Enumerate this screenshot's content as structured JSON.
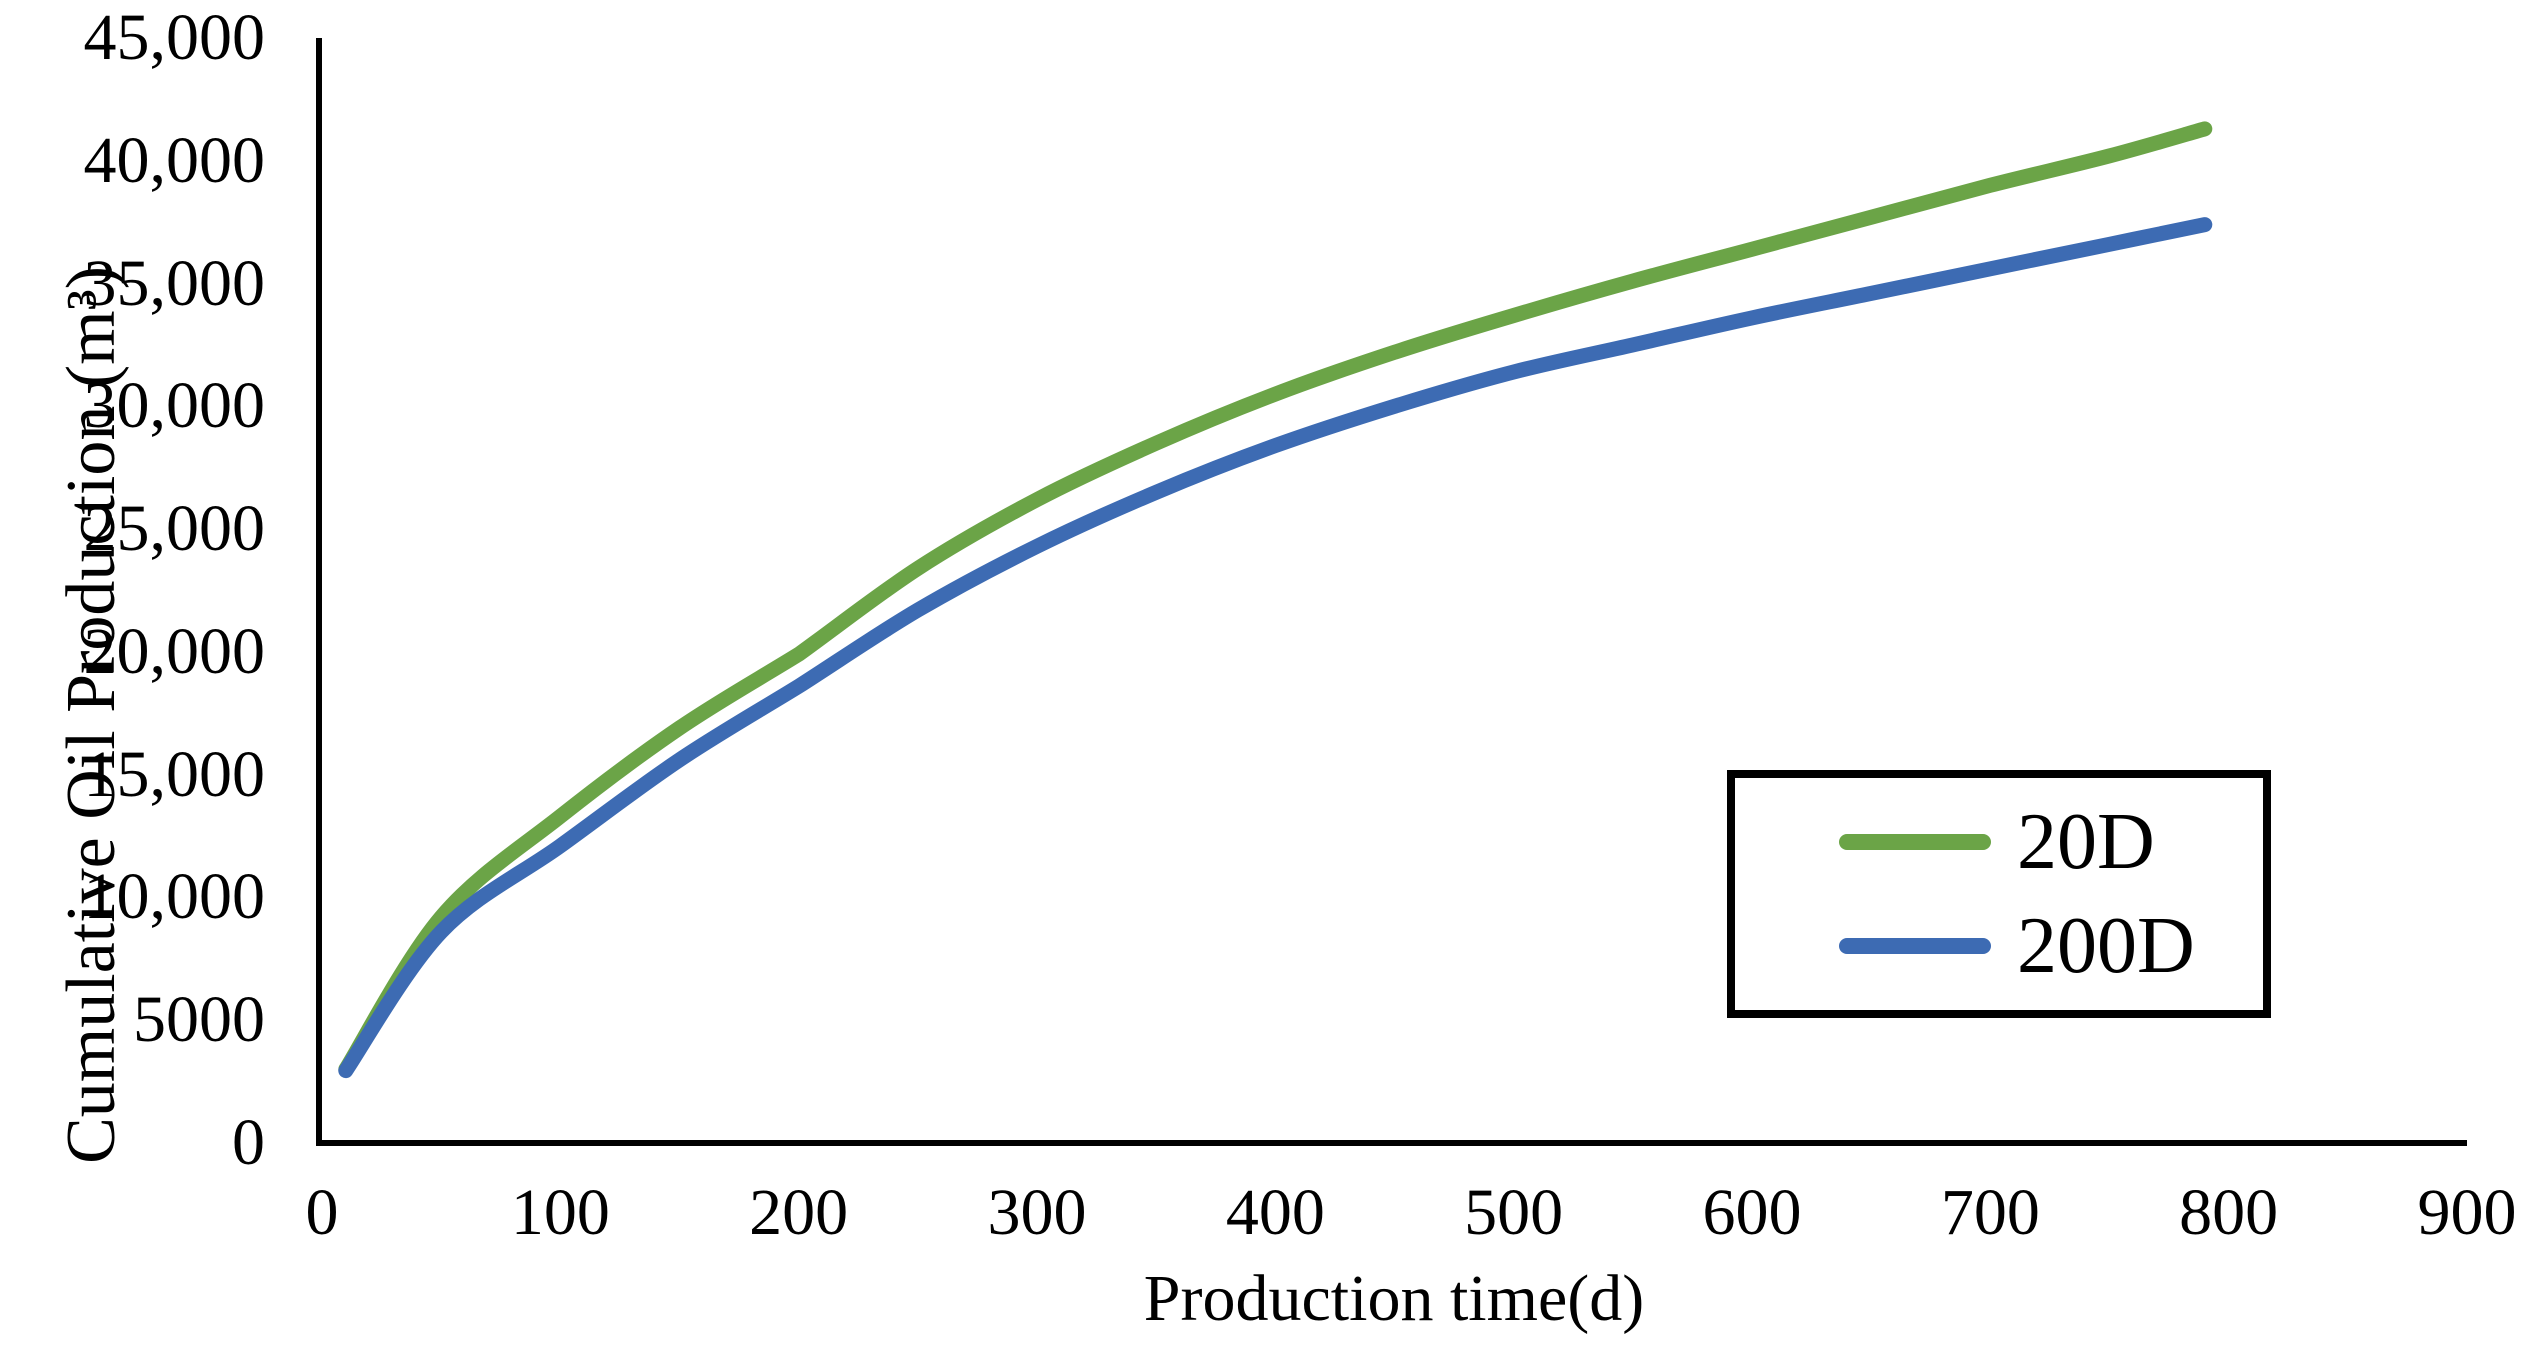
{
  "chart_data": {
    "type": "line",
    "title": "",
    "xlabel": "Production time(d)",
    "ylabel": "Cumulative Oil Production (m³)",
    "xlim": [
      0,
      900
    ],
    "ylim": [
      0,
      45000
    ],
    "grid": false,
    "legend_position": "inside-right-boxed",
    "axis_color": "#000000",
    "sharp_x": 200,
    "x_ticks": [
      {
        "value": 0,
        "label": "0"
      },
      {
        "value": 100,
        "label": "100"
      },
      {
        "value": 200,
        "label": "200"
      },
      {
        "value": 300,
        "label": "300"
      },
      {
        "value": 400,
        "label": "400"
      },
      {
        "value": 500,
        "label": "500"
      },
      {
        "value": 600,
        "label": "600"
      },
      {
        "value": 700,
        "label": "700"
      },
      {
        "value": 800,
        "label": "800"
      },
      {
        "value": 900,
        "label": "900"
      }
    ],
    "y_ticks": [
      {
        "value": 0,
        "label": "0"
      },
      {
        "value": 5000,
        "label": "5000"
      },
      {
        "value": 10000,
        "label": "10,000"
      },
      {
        "value": 15000,
        "label": "15,000"
      },
      {
        "value": 20000,
        "label": "20,000"
      },
      {
        "value": 25000,
        "label": "25,000"
      },
      {
        "value": 30000,
        "label": "30,000"
      },
      {
        "value": 35000,
        "label": "35,000"
      },
      {
        "value": 40000,
        "label": "40,000"
      },
      {
        "value": 45000,
        "label": "45,000"
      }
    ],
    "x": [
      10,
      50,
      100,
      150,
      200,
      250,
      300,
      350,
      400,
      450,
      500,
      550,
      600,
      650,
      700,
      750,
      790
    ],
    "series": [
      {
        "name": "20D",
        "color": "#6ba447",
        "line_width": 15,
        "values": [
          3000,
          9200,
          13300,
          16900,
          19900,
          23400,
          26200,
          28500,
          30500,
          32200,
          33700,
          35100,
          36400,
          37700,
          39000,
          40200,
          41300
        ]
      },
      {
        "name": "200D",
        "color": "#3d6bb3",
        "line_width": 15,
        "values": [
          2950,
          8600,
          12100,
          15600,
          18600,
          21700,
          24300,
          26500,
          28400,
          30000,
          31400,
          32500,
          33600,
          34600,
          35600,
          36600,
          37400
        ]
      }
    ]
  }
}
